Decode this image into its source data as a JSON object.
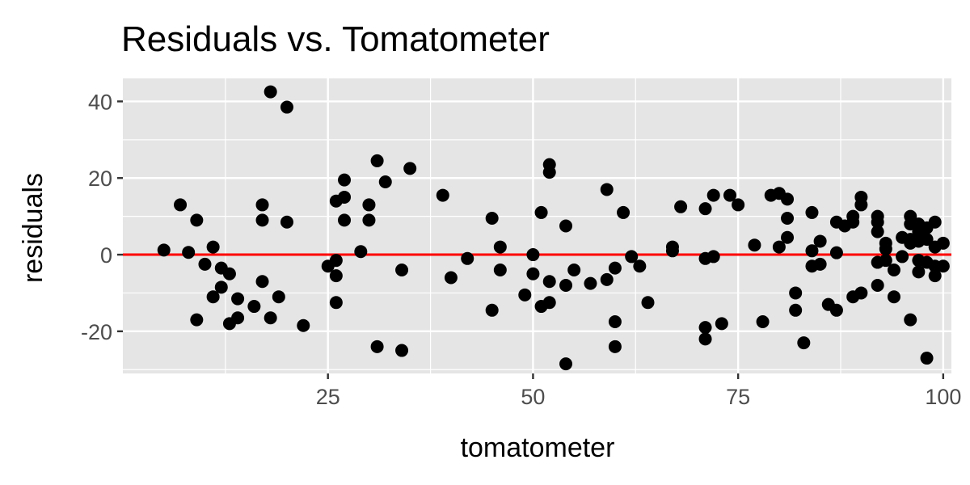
{
  "chart_data": {
    "type": "scatter",
    "title": "Residuals vs. Tomatometer",
    "xlabel": "tomatometer",
    "ylabel": "residuals",
    "xlim": [
      0,
      101
    ],
    "ylim": [
      -31,
      46
    ],
    "x_ticks": [
      25,
      50,
      75,
      100
    ],
    "x_tick_labels": [
      "25",
      "50",
      "75",
      "100"
    ],
    "y_ticks": [
      -20,
      0,
      20,
      40
    ],
    "y_tick_labels": [
      "-20",
      "0",
      "20",
      "40"
    ],
    "grid": true,
    "background": "#e5e5e5",
    "point_color": "#000000",
    "reference_line": {
      "y": 0,
      "color": "#ff0000"
    },
    "points": [
      [
        5,
        1.2
      ],
      [
        7,
        13
      ],
      [
        8,
        0.6
      ],
      [
        9,
        9
      ],
      [
        9,
        -17
      ],
      [
        10,
        -2.5
      ],
      [
        11,
        2
      ],
      [
        11,
        -11
      ],
      [
        12,
        -3.5
      ],
      [
        12,
        -8.5
      ],
      [
        13,
        -5
      ],
      [
        13,
        -18
      ],
      [
        14,
        -11.5
      ],
      [
        14,
        -16.5
      ],
      [
        16,
        -13.5
      ],
      [
        17,
        13
      ],
      [
        17,
        9
      ],
      [
        17,
        -7
      ],
      [
        18,
        42.5
      ],
      [
        18,
        -16.5
      ],
      [
        19,
        -11
      ],
      [
        20,
        38.5
      ],
      [
        20,
        8.5
      ],
      [
        22,
        -18.5
      ],
      [
        25,
        -3
      ],
      [
        26,
        14
      ],
      [
        26,
        -1.5
      ],
      [
        26,
        -5.5
      ],
      [
        26,
        -12.5
      ],
      [
        27,
        19.5
      ],
      [
        27,
        15
      ],
      [
        27,
        9
      ],
      [
        29,
        0.8
      ],
      [
        30,
        13
      ],
      [
        30,
        9
      ],
      [
        31,
        24.5
      ],
      [
        31,
        -24
      ],
      [
        32,
        19
      ],
      [
        34,
        -4
      ],
      [
        34,
        -25
      ],
      [
        35,
        22.5
      ],
      [
        39,
        15.5
      ],
      [
        40,
        -6
      ],
      [
        42,
        -1
      ],
      [
        45,
        9.5
      ],
      [
        45,
        -14.5
      ],
      [
        46,
        2
      ],
      [
        46,
        -4
      ],
      [
        49,
        -10.5
      ],
      [
        50,
        0
      ],
      [
        50,
        -5
      ],
      [
        51,
        11
      ],
      [
        51,
        -13.5
      ],
      [
        52,
        23.5
      ],
      [
        52,
        21.5
      ],
      [
        52,
        -7
      ],
      [
        52,
        -12.5
      ],
      [
        54,
        7.5
      ],
      [
        54,
        -8
      ],
      [
        54,
        -28.5
      ],
      [
        55,
        -4
      ],
      [
        57,
        -7.5
      ],
      [
        59,
        17
      ],
      [
        59,
        -6.5
      ],
      [
        60,
        -3.5
      ],
      [
        60,
        -17.5
      ],
      [
        60,
        -24
      ],
      [
        61,
        11
      ],
      [
        62,
        -0.5
      ],
      [
        63,
        -3
      ],
      [
        64,
        -12.5
      ],
      [
        67,
        2
      ],
      [
        67,
        1
      ],
      [
        68,
        12.5
      ],
      [
        71,
        12
      ],
      [
        71,
        -1
      ],
      [
        71,
        -19
      ],
      [
        71,
        -22
      ],
      [
        72,
        15.5
      ],
      [
        72,
        -0.5
      ],
      [
        73,
        -18
      ],
      [
        74,
        15.5
      ],
      [
        75,
        13
      ],
      [
        77,
        2.5
      ],
      [
        78,
        -17.5
      ],
      [
        79,
        15.5
      ],
      [
        80,
        16
      ],
      [
        80,
        2
      ],
      [
        81,
        14.5
      ],
      [
        81,
        9.5
      ],
      [
        81,
        4.5
      ],
      [
        82,
        -10
      ],
      [
        82,
        -14.5
      ],
      [
        83,
        -23
      ],
      [
        84,
        11
      ],
      [
        84,
        1
      ],
      [
        84,
        -3
      ],
      [
        85,
        3.5
      ],
      [
        85,
        -2.5
      ],
      [
        86,
        -13
      ],
      [
        87,
        8.5
      ],
      [
        87,
        0.5
      ],
      [
        87,
        -14.5
      ],
      [
        88,
        7.5
      ],
      [
        89,
        10
      ],
      [
        89,
        8.5
      ],
      [
        89,
        -11
      ],
      [
        90,
        15
      ],
      [
        90,
        13
      ],
      [
        90,
        -10
      ],
      [
        92,
        10
      ],
      [
        92,
        8.5
      ],
      [
        92,
        6
      ],
      [
        92,
        -2
      ],
      [
        92,
        -8
      ],
      [
        93,
        3
      ],
      [
        93,
        1.5
      ],
      [
        93,
        -1.5
      ],
      [
        94,
        -4
      ],
      [
        94,
        -11
      ],
      [
        95,
        4.5
      ],
      [
        95,
        -0.5
      ],
      [
        96,
        10
      ],
      [
        96,
        8
      ],
      [
        96,
        4
      ],
      [
        96,
        3
      ],
      [
        96,
        -17
      ],
      [
        97,
        8
      ],
      [
        97,
        6
      ],
      [
        97,
        3.5
      ],
      [
        97,
        -1.5
      ],
      [
        97,
        -4.5
      ],
      [
        98,
        7
      ],
      [
        98,
        4
      ],
      [
        98,
        -2
      ],
      [
        98,
        -27
      ],
      [
        99,
        8.5
      ],
      [
        99,
        2
      ],
      [
        99,
        -3
      ],
      [
        99,
        -5.5
      ],
      [
        100,
        3
      ],
      [
        100,
        -3
      ]
    ]
  }
}
